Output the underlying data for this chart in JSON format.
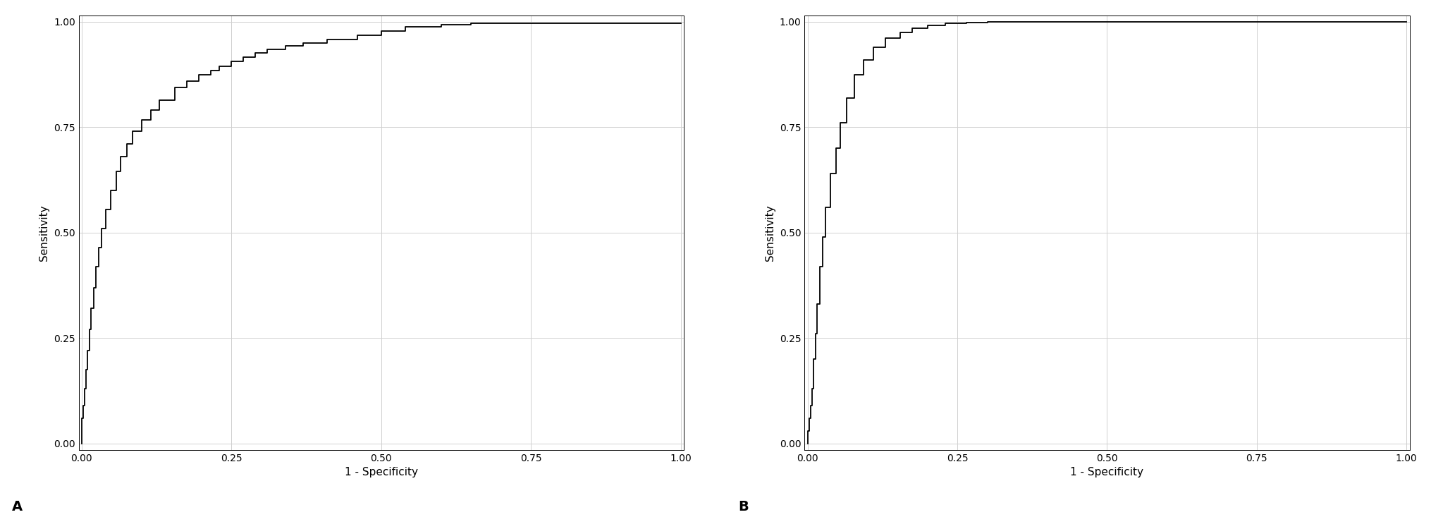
{
  "plot_A": {
    "fpr": [
      0.0,
      0.0,
      0.003,
      0.003,
      0.005,
      0.005,
      0.007,
      0.007,
      0.01,
      0.01,
      0.013,
      0.013,
      0.016,
      0.016,
      0.02,
      0.02,
      0.024,
      0.024,
      0.028,
      0.028,
      0.033,
      0.033,
      0.04,
      0.04,
      0.048,
      0.048,
      0.058,
      0.058,
      0.065,
      0.065,
      0.075,
      0.075,
      0.085,
      0.085,
      0.1,
      0.1,
      0.115,
      0.115,
      0.13,
      0.13,
      0.155,
      0.155,
      0.175,
      0.175,
      0.195,
      0.195,
      0.215,
      0.215,
      0.23,
      0.23,
      0.25,
      0.25,
      0.27,
      0.27,
      0.29,
      0.29,
      0.31,
      0.31,
      0.34,
      0.34,
      0.37,
      0.37,
      0.41,
      0.41,
      0.46,
      0.46,
      0.5,
      0.5,
      0.54,
      0.54,
      0.6,
      0.6,
      0.65,
      0.65,
      1.0
    ],
    "tpr": [
      0.0,
      0.06,
      0.06,
      0.09,
      0.09,
      0.13,
      0.13,
      0.175,
      0.175,
      0.22,
      0.22,
      0.27,
      0.27,
      0.32,
      0.32,
      0.37,
      0.37,
      0.42,
      0.42,
      0.465,
      0.465,
      0.51,
      0.51,
      0.555,
      0.555,
      0.6,
      0.6,
      0.645,
      0.645,
      0.68,
      0.68,
      0.71,
      0.71,
      0.74,
      0.74,
      0.768,
      0.768,
      0.79,
      0.79,
      0.815,
      0.815,
      0.845,
      0.845,
      0.86,
      0.86,
      0.875,
      0.875,
      0.885,
      0.885,
      0.895,
      0.895,
      0.907,
      0.907,
      0.917,
      0.917,
      0.927,
      0.927,
      0.935,
      0.935,
      0.943,
      0.943,
      0.95,
      0.95,
      0.958,
      0.958,
      0.968,
      0.968,
      0.978,
      0.978,
      0.988,
      0.988,
      0.993,
      0.993,
      0.997,
      0.997
    ]
  },
  "plot_B": {
    "fpr": [
      0.0,
      0.0,
      0.003,
      0.003,
      0.005,
      0.005,
      0.007,
      0.007,
      0.01,
      0.01,
      0.013,
      0.013,
      0.016,
      0.016,
      0.02,
      0.02,
      0.025,
      0.025,
      0.03,
      0.03,
      0.038,
      0.038,
      0.048,
      0.048,
      0.055,
      0.055,
      0.065,
      0.065,
      0.078,
      0.078,
      0.093,
      0.093,
      0.11,
      0.11,
      0.13,
      0.13,
      0.155,
      0.155,
      0.175,
      0.175,
      0.2,
      0.2,
      0.23,
      0.23,
      0.265,
      0.265,
      0.3,
      0.3,
      1.0
    ],
    "tpr": [
      0.0,
      0.03,
      0.03,
      0.06,
      0.06,
      0.09,
      0.09,
      0.13,
      0.13,
      0.2,
      0.2,
      0.26,
      0.26,
      0.33,
      0.33,
      0.42,
      0.42,
      0.49,
      0.49,
      0.56,
      0.56,
      0.64,
      0.64,
      0.7,
      0.7,
      0.76,
      0.76,
      0.82,
      0.82,
      0.875,
      0.875,
      0.91,
      0.91,
      0.94,
      0.94,
      0.962,
      0.962,
      0.975,
      0.975,
      0.985,
      0.985,
      0.992,
      0.992,
      0.996,
      0.996,
      0.998,
      0.998,
      1.0,
      1.0
    ]
  },
  "xlabel": "1 - Specificity",
  "ylabel": "Sensitivity",
  "xticks": [
    0.0,
    0.25,
    0.5,
    0.75,
    1.0
  ],
  "yticks": [
    0.0,
    0.25,
    0.5,
    0.75,
    1.0
  ],
  "xticklabels": [
    "0.00",
    "0.25",
    "0.50",
    "0.75",
    "1.00"
  ],
  "yticklabels": [
    "0.00",
    "0.25",
    "0.50",
    "0.75",
    "1.00"
  ],
  "label_A": "A",
  "label_B": "B",
  "line_color": "#000000",
  "line_width": 1.3,
  "bg_color": "#ffffff",
  "grid_color": "#d0d0d0",
  "axis_tick_fontsize": 10,
  "axis_label_fontsize": 11,
  "panel_label_fontsize": 14,
  "xlim": [
    -0.005,
    1.005
  ],
  "ylim": [
    -0.015,
    1.015
  ]
}
